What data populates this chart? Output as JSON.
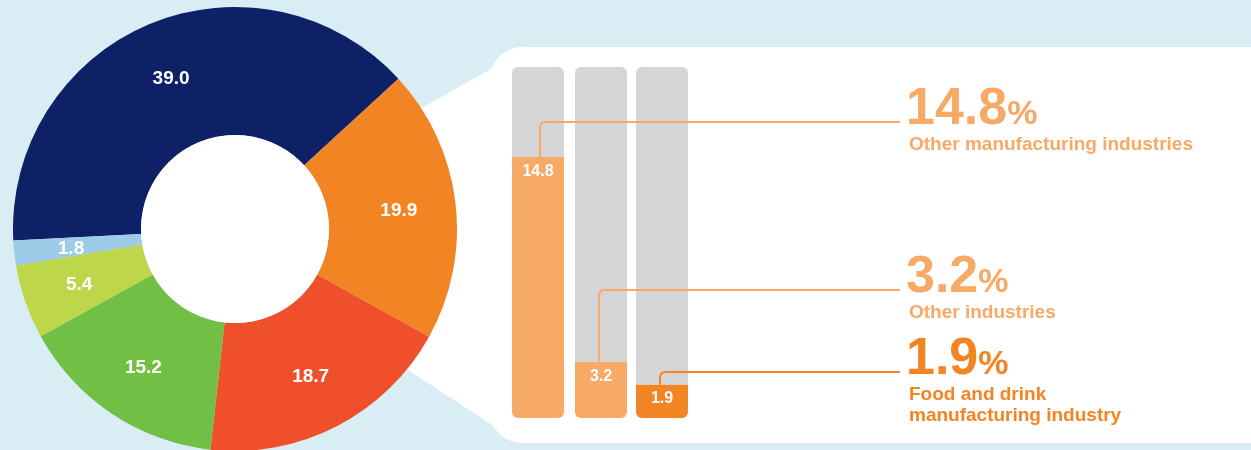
{
  "chart_data": [
    {
      "type": "donut",
      "categories": [
        null,
        null,
        null,
        null,
        null,
        null
      ],
      "values": [
        39.0,
        19.9,
        18.7,
        15.2,
        5.4,
        1.8
      ],
      "colors": [
        "#0e2066",
        "#f38423",
        "#f04f2b",
        "#72bf46",
        "#bed64a",
        "#9dcbe8"
      ],
      "value_labels": [
        "39.0",
        "19.9",
        "18.7",
        "15.2",
        "5.4",
        "1.8"
      ]
    },
    {
      "type": "bar",
      "stacked": true,
      "categories": [
        null,
        null,
        null
      ],
      "series": [
        {
          "colors": [
            "#f7a966",
            "#f7a966",
            "#f38423"
          ],
          "values": [
            14.8,
            3.2,
            1.9
          ],
          "value_labels": [
            "14.8",
            "3.2",
            "1.9"
          ]
        },
        {
          "color": "#d4d5d7",
          "values": [
            5.1,
            16.7,
            18.0
          ]
        }
      ],
      "annotations": [
        "14.8%",
        "Other manufacturing industries",
        "3.2%",
        "Other industries",
        "1.9%",
        "Food and drink manufacturing industry"
      ]
    }
  ]
}
